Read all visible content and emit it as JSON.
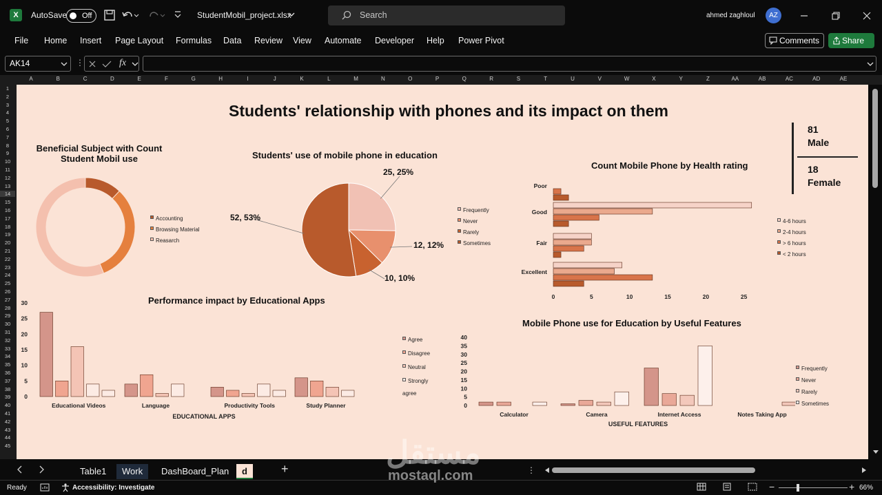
{
  "titlebar": {
    "autosave_label": "AutoSave",
    "autosave_state": "Off",
    "filename": "StudentMobil_project.xlsx",
    "search_placeholder": "Search",
    "user_name": "ahmed zaghloul",
    "user_initials": "AZ"
  },
  "menu": [
    "File",
    "Home",
    "Insert",
    "Page Layout",
    "Formulas",
    "Data",
    "Review",
    "View",
    "Automate",
    "Developer",
    "Help",
    "Power Pivot"
  ],
  "buttons": {
    "comments": "Comments",
    "share": "Share"
  },
  "formula_bar": {
    "name_box": "AK14",
    "fx": "fx",
    "value": ""
  },
  "columns": [
    "A",
    "B",
    "C",
    "D",
    "E",
    "F",
    "G",
    "H",
    "I",
    "J",
    "K",
    "L",
    "M",
    "N",
    "O",
    "P",
    "Q",
    "R",
    "S",
    "T",
    "U",
    "V",
    "W",
    "X",
    "Y",
    "Z",
    "AA",
    "AB",
    "AC",
    "AD",
    "AE"
  ],
  "rows": [
    "1",
    "2",
    "3",
    "4",
    "5",
    "6",
    "7",
    "8",
    "9",
    "10",
    "11",
    "12",
    "13",
    "14",
    "15",
    "16",
    "17",
    "18",
    "19",
    "20",
    "21",
    "22",
    "23",
    "24",
    "25",
    "26",
    "27",
    "28",
    "29",
    "30",
    "31",
    "32",
    "33",
    "34",
    "35",
    "36",
    "37",
    "38",
    "39",
    "40",
    "41",
    "42",
    "43",
    "44",
    "45"
  ],
  "dashboard": {
    "title": "Students' relationship with phones and its impact on them",
    "kpi": {
      "male_count": "81",
      "male_label": "Male",
      "female_count": "18",
      "female_label": "Female"
    }
  },
  "chart_data": [
    {
      "type": "pie",
      "variant": "doughnut",
      "title": "Beneficial Subject with Count Student Mobil use",
      "title_line1": "Beneficial Subject with Count",
      "title_line2": "Student Mobil use",
      "categories": [
        "Accounting",
        "Browsing Material",
        "Reasarch"
      ],
      "values": [
        12,
        32,
        56
      ],
      "colors": [
        "#b85a2c",
        "#e5803e",
        "#f4c0ae"
      ]
    },
    {
      "type": "pie",
      "title": "Students' use of mobile phone in education",
      "categories": [
        "Frequently",
        "Never",
        "Rarely",
        "Sometimes"
      ],
      "values": [
        25,
        12,
        10,
        52
      ],
      "data_labels": [
        "25, 25%",
        "12, 12%",
        "10, 10%",
        "52, 53%"
      ],
      "colors": [
        "#f1c1b4",
        "#e8906d",
        "#c8622f",
        "#b85a2c"
      ]
    },
    {
      "type": "bar",
      "orientation": "horizontal",
      "title": "Count Mobile Phone by Health rating",
      "categories": [
        "Poor",
        "Good",
        "Fair",
        "Excellent"
      ],
      "series": [
        {
          "name": "4-6 hours",
          "values": [
            0,
            26,
            5,
            9
          ],
          "color": "#f6d3c8"
        },
        {
          "name": "2-4 hours",
          "values": [
            0,
            13,
            5,
            8
          ],
          "color": "#eaa98d"
        },
        {
          "name": "> 6 hours",
          "values": [
            1,
            6,
            4,
            13
          ],
          "color": "#d8744a"
        },
        {
          "name": "< 2 hours",
          "values": [
            2,
            2,
            1,
            4
          ],
          "color": "#b85a2c"
        }
      ],
      "xlim": [
        0,
        30
      ],
      "xticks": [
        0,
        5,
        10,
        15,
        20,
        25,
        30
      ]
    },
    {
      "type": "bar",
      "title": "Performance impact by Educational Apps",
      "xlabel": "EDUCATIONAL APPS",
      "categories": [
        "Educational Videos",
        "Language",
        "Productivity Tools",
        "Study Planner"
      ],
      "series": [
        {
          "name": "Agree",
          "values": [
            27,
            4,
            3,
            6
          ],
          "color": "#d4958a"
        },
        {
          "name": "Disagree",
          "values": [
            5,
            7,
            2,
            5
          ],
          "color": "#f0a590"
        },
        {
          "name": "Neutral",
          "values": [
            16,
            1,
            1,
            3
          ],
          "color": "#f4c4b5"
        },
        {
          "name": "Strongly agree",
          "values": [
            4,
            4,
            4,
            2
          ],
          "color": "#fcebe4"
        }
      ],
      "series_extra": [
        2,
        null,
        2,
        null
      ],
      "ylim": [
        0,
        30
      ],
      "yticks": [
        0,
        5,
        10,
        15,
        20,
        25,
        30
      ]
    },
    {
      "type": "bar",
      "title": "Mobile Phone use for Education by Useful Features",
      "xlabel": "USEFUL FEATURES",
      "categories": [
        "Calculator",
        "Camera",
        "Internet Access",
        "Notes Taking App"
      ],
      "series": [
        {
          "name": "Frequently",
          "values": [
            2,
            1,
            22,
            0
          ],
          "color": "#d4958a"
        },
        {
          "name": "Never",
          "values": [
            2,
            3,
            7,
            0
          ],
          "color": "#e9a898"
        },
        {
          "name": "Rarely",
          "values": [
            0,
            2,
            6,
            2
          ],
          "color": "#f3c8bb"
        },
        {
          "name": "Sometimes",
          "values": [
            2,
            8,
            35,
            7
          ],
          "color": "#fdf0eb"
        }
      ],
      "ylim": [
        0,
        40
      ],
      "yticks": [
        0,
        5,
        10,
        15,
        20,
        25,
        30,
        35,
        40
      ]
    }
  ],
  "sheet_tabs": [
    "Table1",
    "Work",
    "DashBoard_Plan",
    "d"
  ],
  "active_tab": "d",
  "status": {
    "ready": "Ready",
    "accessibility": "Accessibility: Investigate",
    "zoom": "66%"
  },
  "watermark": {
    "arabic": "مستقل",
    "latin": "mostaql.com"
  }
}
